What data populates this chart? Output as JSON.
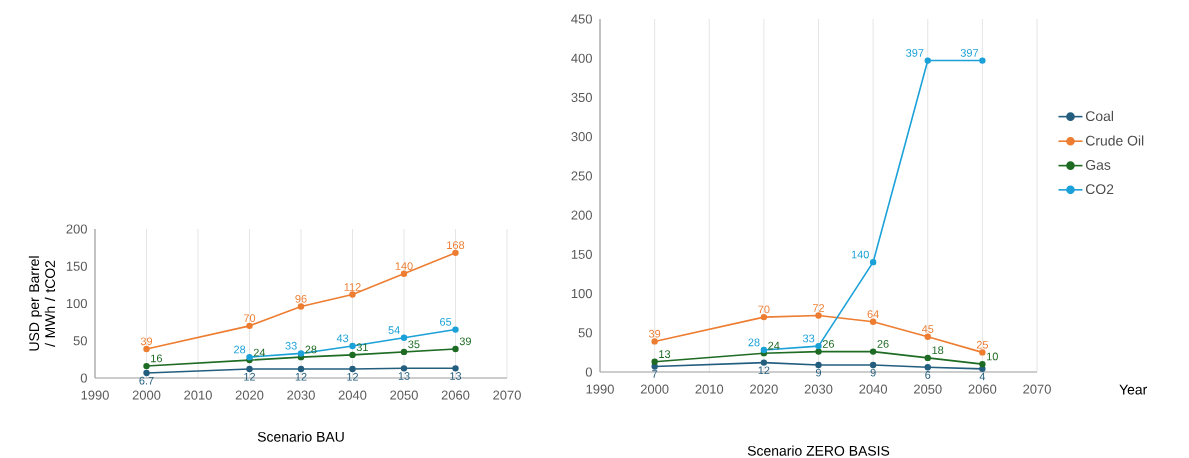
{
  "chart_data": [
    {
      "type": "line",
      "ylabel": "USD per Barrel / MWh / tCO2",
      "xlabel": "Scenario BAU",
      "x": [
        2000,
        2020,
        2030,
        2040,
        2050,
        2060
      ],
      "xlim": [
        1990,
        2070
      ],
      "xticks": [
        1990,
        2000,
        2010,
        2020,
        2030,
        2040,
        2050,
        2060,
        2070
      ],
      "ylim": [
        0,
        200
      ],
      "yticks": [
        0,
        50,
        100,
        150,
        200
      ],
      "grid": "x",
      "marker": "circle",
      "data_labels": true,
      "series": [
        {
          "color": "#245e7f",
          "values": [
            6.7,
            12,
            12,
            12,
            13,
            13
          ]
        },
        {
          "color": "#ed7d31",
          "values": [
            39,
            70,
            96,
            112,
            140,
            168
          ]
        },
        {
          "color": "#1e6b24",
          "values": [
            16,
            24,
            28,
            31,
            35,
            39
          ]
        },
        {
          "color": "#1ba1d8",
          "values": [
            null,
            28,
            33,
            43,
            54,
            65
          ]
        }
      ]
    },
    {
      "type": "line",
      "xlabel": "Scenario ZERO BASIS",
      "annotations": [
        "Year"
      ],
      "x": [
        2000,
        2020,
        2030,
        2040,
        2050,
        2060
      ],
      "xlim": [
        1990,
        2070
      ],
      "xticks": [
        1990,
        2000,
        2010,
        2020,
        2030,
        2040,
        2050,
        2060,
        2070
      ],
      "ylim": [
        0,
        450
      ],
      "yticks": [
        0,
        50,
        100,
        150,
        200,
        250,
        300,
        350,
        400,
        450
      ],
      "grid": "x",
      "marker": "circle",
      "data_labels": true,
      "legend": "right",
      "series": [
        {
          "name": "Coal",
          "color": "#245e7f",
          "values": [
            7,
            12,
            9,
            9,
            6,
            4
          ]
        },
        {
          "name": "Crude Oil",
          "color": "#ed7d31",
          "values": [
            39,
            70,
            72,
            64,
            45,
            25
          ]
        },
        {
          "name": "Gas",
          "color": "#1e6b24",
          "values": [
            13,
            24,
            26,
            26,
            18,
            10
          ]
        },
        {
          "name": "CO2",
          "color": "#1ba1d8",
          "values": [
            null,
            28,
            33,
            140,
            397,
            397
          ]
        }
      ]
    }
  ]
}
